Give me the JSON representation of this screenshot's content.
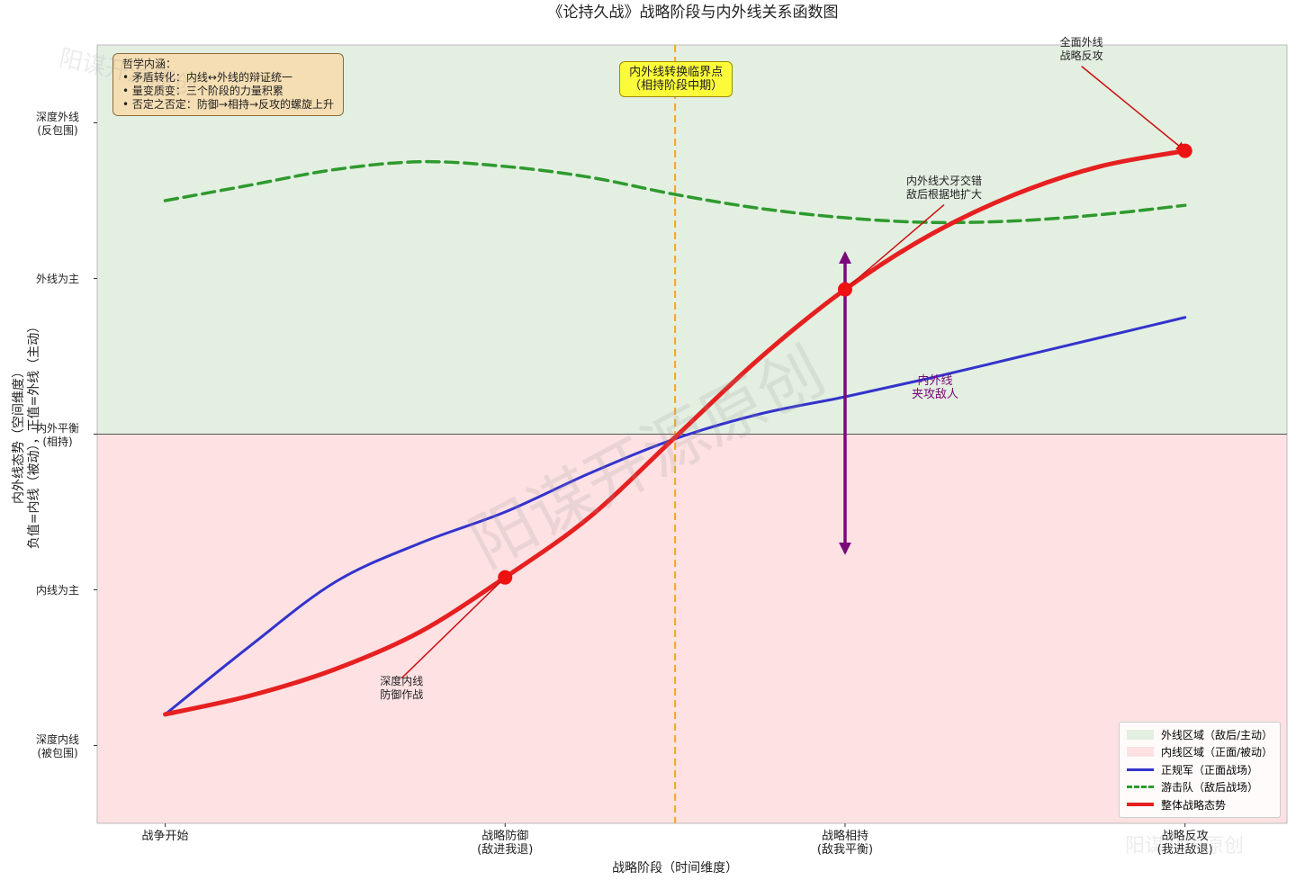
{
  "chart_data": {
    "type": "line",
    "title": "《论持久战》战略阶段与内外线关系函数图",
    "x_label": "战略阶段（时间维度）",
    "y_label": "内外线态势（空间维度）\n负值=内线（被动），正值=外线（主动）",
    "xlim": [
      -0.2,
      3.3
    ],
    "ylim": [
      -2.5,
      2.5
    ],
    "xticks": [
      {
        "value": 0,
        "label": "战争开始"
      },
      {
        "value": 1,
        "label": "战略防御\n(敌进我退)"
      },
      {
        "value": 2,
        "label": "战略相持\n(敌我平衡)"
      },
      {
        "value": 3,
        "label": "战略反攻\n(我进敌退)"
      }
    ],
    "yticks": [
      {
        "value": -2,
        "label": "深度内线\n(被包围)"
      },
      {
        "value": -1,
        "label": "内线为主"
      },
      {
        "value": 0,
        "label": "内外平衡\n(相持)"
      },
      {
        "value": 1,
        "label": "外线为主"
      },
      {
        "value": 2,
        "label": "深度外线\n(反包围)"
      }
    ],
    "x": [
      0,
      0.25,
      0.5,
      0.75,
      1,
      1.25,
      1.5,
      1.75,
      2,
      2.25,
      2.5,
      2.75,
      3
    ],
    "regions": [
      {
        "name": "外线区域（敌后/主动）",
        "color": "#e3efe1",
        "range": [
          0,
          2.5
        ]
      },
      {
        "name": "内线区域（正面/被动）",
        "color": "#fde1e3",
        "range": [
          -2.5,
          0
        ]
      }
    ],
    "series": [
      {
        "name": "正规军（正面战场）",
        "color": "#3333cc",
        "style": "solid",
        "values": [
          -1.8,
          -1.36,
          -0.95,
          -0.7,
          -0.5,
          -0.25,
          -0.03,
          0.13,
          0.24,
          0.36,
          0.49,
          0.62,
          0.75
        ]
      },
      {
        "name": "游击队（敌后战场）",
        "color": "#2e9a2e",
        "style": "dashed",
        "values": [
          1.5,
          1.6,
          1.7,
          1.75,
          1.72,
          1.65,
          1.54,
          1.45,
          1.39,
          1.36,
          1.37,
          1.41,
          1.47
        ]
      },
      {
        "name": "整体战略态势",
        "color": "#e62020",
        "style": "bold",
        "values": [
          -1.8,
          -1.68,
          -1.51,
          -1.27,
          -0.92,
          -0.53,
          -0.02,
          0.49,
          0.93,
          1.28,
          1.54,
          1.72,
          1.82
        ]
      }
    ],
    "critical_x": 1.5,
    "critical_label": "内外线转换临界点\n（相持阶段中期）",
    "double_arrow": {
      "x": 2,
      "y": [
        -0.76,
        1.16
      ],
      "color": "#7a0a7a",
      "label": "内外线\n夹攻敌人"
    },
    "annotations": [
      "深度内线\n防御作战",
      "内外线犬牙交错\n敌后根据地扩大",
      "全面外线\n战略反攻"
    ],
    "philosophy": {
      "title": "哲学内涵：",
      "items": [
        "• 矛盾转化：内线↔外线的辩证统一",
        "• 量变质变：三个阶段的力量积累",
        "• 否定之否定：防御→相持→反攻的螺旋上升"
      ]
    },
    "watermark": "阳谋开源原创",
    "legend": "lower right"
  }
}
